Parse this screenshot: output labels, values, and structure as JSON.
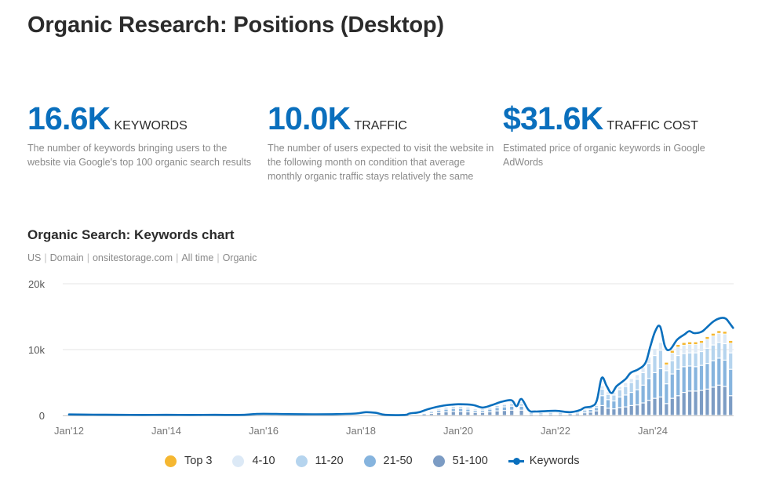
{
  "page": {
    "title": "Organic Research: Positions (Desktop)"
  },
  "metrics": [
    {
      "value": "16.6K",
      "label": "KEYWORDS",
      "description": "The number of keywords bringing users to the website via Google's top 100 organic search results"
    },
    {
      "value": "10.0K",
      "label": "TRAFFIC",
      "description": "The number of users expected to visit the website in the following month on condition that average monthly organic traffic stays relatively the same"
    },
    {
      "value": "$31.6K",
      "label": "TRAFFIC COST",
      "description": "Estimated price of organic keywords in Google AdWords"
    }
  ],
  "chart_header": {
    "title": "Organic Search: Keywords chart",
    "filters": [
      "US",
      "Domain",
      "onsitestorage.com",
      "All time",
      "Organic"
    ]
  },
  "colors": {
    "accent": "#0a6fbd",
    "top3": "#f5b731",
    "pos_4_10": "#dce9f6",
    "pos_11_20": "#b5d4ee",
    "pos_21_50": "#86b4de",
    "pos_51_100": "#7c9cc4",
    "grid": "#e6e6e6"
  },
  "chart_data": {
    "type": "bar",
    "title": "Organic Search: Keywords chart",
    "xlabel": "",
    "ylabel": "",
    "ylim": [
      0,
      20000
    ],
    "yticks": [
      {
        "value": 0,
        "label": "0"
      },
      {
        "value": 10000,
        "label": "10k"
      },
      {
        "value": 20000,
        "label": "20k"
      }
    ],
    "xticks": [
      {
        "value": 2012.0,
        "label": "Jan'12"
      },
      {
        "value": 2014.0,
        "label": "Jan'14"
      },
      {
        "value": 2016.0,
        "label": "Jan'16"
      },
      {
        "value": 2018.0,
        "label": "Jan'18"
      },
      {
        "value": 2020.0,
        "label": "Jan'20"
      },
      {
        "value": 2022.0,
        "label": "Jan'22"
      },
      {
        "value": 2024.0,
        "label": "Jan'24"
      }
    ],
    "xlim": [
      2011.87,
      2025.67
    ],
    "grid": true,
    "legend_position": "bottom",
    "legend": [
      "Top 3",
      "4-10",
      "11-20",
      "21-50",
      "51-100",
      "Keywords"
    ],
    "keywords_line": {
      "name": "Keywords",
      "points": [
        [
          2012.0,
          150
        ],
        [
          2012.5,
          120
        ],
        [
          2013.0,
          100
        ],
        [
          2013.5,
          80
        ],
        [
          2014.0,
          90
        ],
        [
          2014.5,
          80
        ],
        [
          2015.0,
          100
        ],
        [
          2015.5,
          80
        ],
        [
          2015.8,
          200
        ],
        [
          2016.0,
          250
        ],
        [
          2016.5,
          200
        ],
        [
          2017.0,
          180
        ],
        [
          2017.5,
          200
        ],
        [
          2017.9,
          300
        ],
        [
          2018.1,
          500
        ],
        [
          2018.3,
          400
        ],
        [
          2018.5,
          100
        ],
        [
          2018.9,
          80
        ],
        [
          2019.0,
          300
        ],
        [
          2019.2,
          500
        ],
        [
          2019.4,
          1000
        ],
        [
          2019.7,
          1500
        ],
        [
          2020.0,
          1700
        ],
        [
          2020.3,
          1600
        ],
        [
          2020.5,
          1200
        ],
        [
          2020.7,
          1600
        ],
        [
          2020.9,
          2100
        ],
        [
          2021.1,
          2300
        ],
        [
          2021.2,
          1400
        ],
        [
          2021.3,
          2500
        ],
        [
          2021.45,
          800
        ],
        [
          2021.6,
          600
        ],
        [
          2022.0,
          700
        ],
        [
          2022.3,
          500
        ],
        [
          2022.5,
          800
        ],
        [
          2022.6,
          1200
        ],
        [
          2022.75,
          1400
        ],
        [
          2022.85,
          2300
        ],
        [
          2022.95,
          5700
        ],
        [
          2023.05,
          4500
        ],
        [
          2023.15,
          3400
        ],
        [
          2023.25,
          4400
        ],
        [
          2023.35,
          5000
        ],
        [
          2023.45,
          5600
        ],
        [
          2023.55,
          6500
        ],
        [
          2023.7,
          7000
        ],
        [
          2023.85,
          8000
        ],
        [
          2023.95,
          10500
        ],
        [
          2024.05,
          12800
        ],
        [
          2024.15,
          13500
        ],
        [
          2024.25,
          10500
        ],
        [
          2024.35,
          10000
        ],
        [
          2024.5,
          11500
        ],
        [
          2024.65,
          12300
        ],
        [
          2024.75,
          12800
        ],
        [
          2024.85,
          12500
        ],
        [
          2025.0,
          12700
        ],
        [
          2025.1,
          13300
        ],
        [
          2025.25,
          14300
        ],
        [
          2025.4,
          14800
        ],
        [
          2025.5,
          14700
        ],
        [
          2025.58,
          14000
        ],
        [
          2025.65,
          13300
        ]
      ]
    },
    "bars": {
      "note": "Stacked monthly bars by ranking position bucket (values in keywords)",
      "series_order": [
        "51-100",
        "21-50",
        "11-20",
        "4-10",
        "Top 3"
      ],
      "months": [
        {
          "x": 2019.3,
          "values": [
            150,
            100,
            50,
            30,
            0
          ]
        },
        {
          "x": 2019.45,
          "values": [
            300,
            200,
            100,
            60,
            0
          ]
        },
        {
          "x": 2019.6,
          "values": [
            450,
            350,
            200,
            100,
            0
          ]
        },
        {
          "x": 2019.75,
          "values": [
            550,
            400,
            250,
            150,
            0
          ]
        },
        {
          "x": 2019.9,
          "values": [
            600,
            450,
            300,
            200,
            0
          ]
        },
        {
          "x": 2020.05,
          "values": [
            600,
            450,
            300,
            200,
            0
          ]
        },
        {
          "x": 2020.2,
          "values": [
            550,
            400,
            250,
            150,
            0
          ]
        },
        {
          "x": 2020.35,
          "values": [
            450,
            300,
            200,
            100,
            0
          ]
        },
        {
          "x": 2020.5,
          "values": [
            450,
            300,
            200,
            100,
            0
          ]
        },
        {
          "x": 2020.65,
          "values": [
            550,
            400,
            250,
            150,
            0
          ]
        },
        {
          "x": 2020.8,
          "values": [
            700,
            500,
            300,
            200,
            0
          ]
        },
        {
          "x": 2020.95,
          "values": [
            750,
            550,
            350,
            200,
            0
          ]
        },
        {
          "x": 2021.1,
          "values": [
            800,
            600,
            400,
            250,
            0
          ]
        },
        {
          "x": 2021.3,
          "values": [
            800,
            600,
            400,
            250,
            0
          ]
        },
        {
          "x": 2021.5,
          "values": [
            200,
            150,
            100,
            50,
            0
          ]
        },
        {
          "x": 2021.7,
          "values": [
            200,
            150,
            100,
            50,
            0
          ]
        },
        {
          "x": 2021.9,
          "values": [
            200,
            150,
            100,
            50,
            0
          ]
        },
        {
          "x": 2022.1,
          "values": [
            200,
            150,
            100,
            50,
            0
          ]
        },
        {
          "x": 2022.3,
          "values": [
            150,
            100,
            80,
            40,
            0
          ]
        },
        {
          "x": 2022.45,
          "values": [
            250,
            200,
            150,
            80,
            0
          ]
        },
        {
          "x": 2022.6,
          "values": [
            400,
            300,
            200,
            100,
            0
          ]
        },
        {
          "x": 2022.72,
          "values": [
            500,
            400,
            250,
            150,
            0
          ]
        },
        {
          "x": 2022.84,
          "values": [
            700,
            500,
            300,
            200,
            0
          ]
        },
        {
          "x": 2022.96,
          "values": [
            1500,
            1500,
            1000,
            500,
            0
          ]
        },
        {
          "x": 2023.08,
          "values": [
            1100,
            1300,
            800,
            400,
            0
          ]
        },
        {
          "x": 2023.2,
          "values": [
            1000,
            1200,
            900,
            400,
            0
          ]
        },
        {
          "x": 2023.32,
          "values": [
            1200,
            1600,
            1100,
            500,
            0
          ]
        },
        {
          "x": 2023.44,
          "values": [
            1300,
            1800,
            1300,
            600,
            0
          ]
        },
        {
          "x": 2023.56,
          "values": [
            1500,
            2000,
            1500,
            600,
            0
          ]
        },
        {
          "x": 2023.68,
          "values": [
            1600,
            2300,
            1600,
            700,
            0
          ]
        },
        {
          "x": 2023.8,
          "values": [
            1900,
            2700,
            1900,
            800,
            0
          ]
        },
        {
          "x": 2023.92,
          "values": [
            2300,
            3300,
            2300,
            1000,
            0
          ]
        },
        {
          "x": 2024.04,
          "values": [
            2600,
            3900,
            2600,
            1100,
            0
          ]
        },
        {
          "x": 2024.16,
          "values": [
            2800,
            4300,
            2800,
            1200,
            0
          ]
        },
        {
          "x": 2024.28,
          "values": [
            1800,
            3000,
            2000,
            900,
            200
          ]
        },
        {
          "x": 2024.4,
          "values": [
            2600,
            3700,
            2000,
            1200,
            200
          ]
        },
        {
          "x": 2024.52,
          "values": [
            3000,
            4000,
            2100,
            1300,
            200
          ]
        },
        {
          "x": 2024.64,
          "values": [
            3500,
            3900,
            2000,
            1300,
            200
          ]
        },
        {
          "x": 2024.76,
          "values": [
            3700,
            3800,
            2000,
            1300,
            200
          ]
        },
        {
          "x": 2024.88,
          "values": [
            3700,
            3700,
            2100,
            1300,
            200
          ]
        },
        {
          "x": 2025.0,
          "values": [
            3800,
            3800,
            2100,
            1300,
            200
          ]
        },
        {
          "x": 2025.12,
          "values": [
            4000,
            3900,
            2300,
            1400,
            200
          ]
        },
        {
          "x": 2025.24,
          "values": [
            4300,
            4000,
            2400,
            1400,
            200
          ]
        },
        {
          "x": 2025.36,
          "values": [
            4600,
            4100,
            2400,
            1400,
            200
          ]
        },
        {
          "x": 2025.48,
          "values": [
            4400,
            4000,
            2500,
            1500,
            200
          ]
        },
        {
          "x": 2025.6,
          "values": [
            3000,
            4000,
            2500,
            1500,
            200
          ]
        }
      ]
    }
  }
}
